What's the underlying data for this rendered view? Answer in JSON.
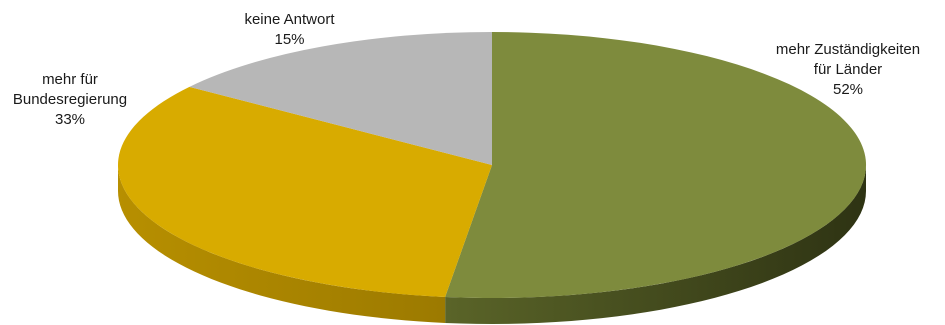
{
  "chart_data": {
    "type": "pie",
    "style": "3d",
    "start": "12 o'clock",
    "direction": "clockwise",
    "slices": [
      {
        "label_lines": [
          "mehr Zuständigkeiten",
          "für Länder"
        ],
        "value": 52,
        "value_label": "52%",
        "color": "#7e8b3d"
      },
      {
        "label_lines": [
          "mehr für",
          "Bundesregierung"
        ],
        "value": 33,
        "value_label": "33%",
        "color": "#d8ab00"
      },
      {
        "label_lines": [
          "keine Antwort"
        ],
        "value": 15,
        "value_label": "15%",
        "color": "#b7b7b7"
      }
    ]
  }
}
